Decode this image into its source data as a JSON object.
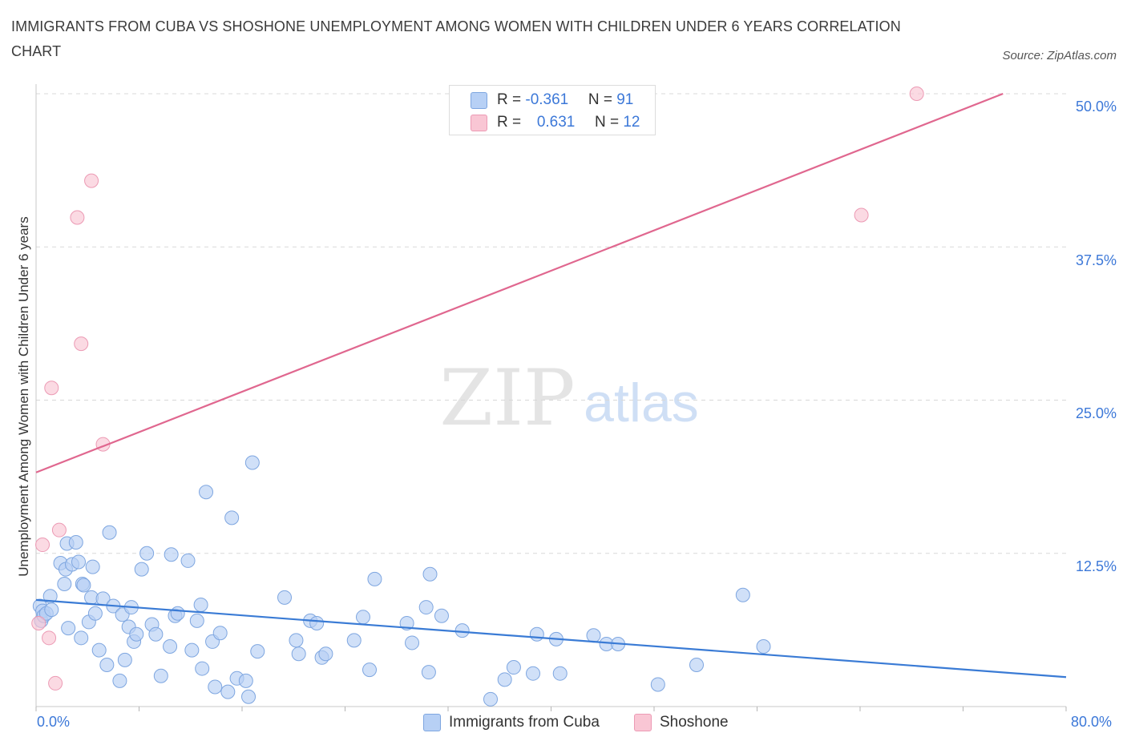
{
  "title": "IMMIGRANTS FROM CUBA VS SHOSHONE UNEMPLOYMENT AMONG WOMEN WITH CHILDREN UNDER 6 YEARS CORRELATION CHART",
  "source": "Source: ZipAtlas.com",
  "watermark": {
    "zip": "ZIP",
    "atlas": "atlas"
  },
  "legend": {
    "cuba": {
      "r_label": "R = ",
      "r_value": "-0.361",
      "n_label": "N = ",
      "n_value": "91"
    },
    "shoshone": {
      "r_label": "R = ",
      "r_value": "0.631",
      "n_label": "N = ",
      "n_value": "12"
    }
  },
  "colors": {
    "cuba_fill": "#b7d0f5",
    "cuba_stroke": "#7ea6e0",
    "cuba_line": "#3a7bd5",
    "shoshone_fill": "#f9c6d4",
    "shoshone_stroke": "#ec9ab4",
    "shoshone_line": "#e0678f",
    "tick_label": "#3c78d8",
    "grid": "#d8d8d8"
  },
  "chart_data": {
    "type": "scatter",
    "title": "IMMIGRANTS FROM CUBA VS SHOSHONE UNEMPLOYMENT AMONG WOMEN WITH CHILDREN UNDER 6 YEARS CORRELATION CHART",
    "xlabel": "",
    "ylabel": "Unemployment Among Women with Children Under 6 years",
    "xlim": [
      0,
      80
    ],
    "ylim": [
      0,
      50
    ],
    "x_tick_labels": [
      "0.0%",
      "80.0%"
    ],
    "y_ticks": [
      12.5,
      25.0,
      37.5,
      50.0
    ],
    "y_tick_labels": [
      "12.5%",
      "25.0%",
      "37.5%",
      "50.0%"
    ],
    "grid": "horizontal dashed",
    "legend_placement": "top-center and bottom",
    "series": [
      {
        "name": "Immigrants from Cuba",
        "trend": [
          [
            0,
            8.7
          ],
          [
            80,
            2.4
          ]
        ],
        "points": [
          [
            0.3,
            8.2
          ],
          [
            0.4,
            7.0
          ],
          [
            0.5,
            7.8
          ],
          [
            0.6,
            7.4
          ],
          [
            0.8,
            7.6
          ],
          [
            1.1,
            9.0
          ],
          [
            1.2,
            7.9
          ],
          [
            1.9,
            11.7
          ],
          [
            2.2,
            10.0
          ],
          [
            2.3,
            11.2
          ],
          [
            2.4,
            13.3
          ],
          [
            2.5,
            6.4
          ],
          [
            2.8,
            11.6
          ],
          [
            3.1,
            13.4
          ],
          [
            3.3,
            11.8
          ],
          [
            3.5,
            5.6
          ],
          [
            3.6,
            10.0
          ],
          [
            3.7,
            9.9
          ],
          [
            4.1,
            6.9
          ],
          [
            4.3,
            8.9
          ],
          [
            4.4,
            11.4
          ],
          [
            4.6,
            7.6
          ],
          [
            4.9,
            4.6
          ],
          [
            5.2,
            8.8
          ],
          [
            5.5,
            3.4
          ],
          [
            5.7,
            14.2
          ],
          [
            6.0,
            8.2
          ],
          [
            6.5,
            2.1
          ],
          [
            6.7,
            7.5
          ],
          [
            6.9,
            3.8
          ],
          [
            7.2,
            6.5
          ],
          [
            7.4,
            8.1
          ],
          [
            7.6,
            5.3
          ],
          [
            7.8,
            5.9
          ],
          [
            8.2,
            11.2
          ],
          [
            8.6,
            12.5
          ],
          [
            9.0,
            6.7
          ],
          [
            9.3,
            5.9
          ],
          [
            9.7,
            2.5
          ],
          [
            10.4,
            4.9
          ],
          [
            10.5,
            12.4
          ],
          [
            10.8,
            7.4
          ],
          [
            11.0,
            7.6
          ],
          [
            11.8,
            11.9
          ],
          [
            12.1,
            4.6
          ],
          [
            12.5,
            7.0
          ],
          [
            12.8,
            8.3
          ],
          [
            12.9,
            3.1
          ],
          [
            13.2,
            17.5
          ],
          [
            13.7,
            5.3
          ],
          [
            13.9,
            1.6
          ],
          [
            14.3,
            6.0
          ],
          [
            14.9,
            1.2
          ],
          [
            15.2,
            15.4
          ],
          [
            15.6,
            2.3
          ],
          [
            16.3,
            2.1
          ],
          [
            16.5,
            0.8
          ],
          [
            16.8,
            19.9
          ],
          [
            17.2,
            4.5
          ],
          [
            19.3,
            8.9
          ],
          [
            20.2,
            5.4
          ],
          [
            20.4,
            4.3
          ],
          [
            21.3,
            7.0
          ],
          [
            21.8,
            6.8
          ],
          [
            22.2,
            4.0
          ],
          [
            22.5,
            4.3
          ],
          [
            24.7,
            5.4
          ],
          [
            25.4,
            7.3
          ],
          [
            25.9,
            3.0
          ],
          [
            26.3,
            10.4
          ],
          [
            28.8,
            6.8
          ],
          [
            29.2,
            5.2
          ],
          [
            30.3,
            8.1
          ],
          [
            30.5,
            2.8
          ],
          [
            30.6,
            10.8
          ],
          [
            31.5,
            7.4
          ],
          [
            33.1,
            6.2
          ],
          [
            35.3,
            0.6
          ],
          [
            36.4,
            2.2
          ],
          [
            37.1,
            3.2
          ],
          [
            38.6,
            2.7
          ],
          [
            38.9,
            5.9
          ],
          [
            40.4,
            5.5
          ],
          [
            40.7,
            2.7
          ],
          [
            43.3,
            5.8
          ],
          [
            44.3,
            5.1
          ],
          [
            45.2,
            5.1
          ],
          [
            48.3,
            1.8
          ],
          [
            51.3,
            3.4
          ],
          [
            54.9,
            9.1
          ],
          [
            56.5,
            4.9
          ]
        ]
      },
      {
        "name": "Shoshone",
        "trend": [
          [
            0,
            19.1
          ],
          [
            75.1,
            50.0
          ]
        ],
        "points": [
          [
            0.2,
            6.8
          ],
          [
            0.5,
            13.2
          ],
          [
            1.0,
            5.6
          ],
          [
            1.2,
            26.0
          ],
          [
            1.5,
            1.9
          ],
          [
            1.8,
            14.4
          ],
          [
            3.2,
            39.9
          ],
          [
            3.5,
            29.6
          ],
          [
            4.3,
            42.9
          ],
          [
            5.2,
            21.4
          ],
          [
            64.1,
            40.1
          ],
          [
            68.4,
            50.0
          ]
        ]
      }
    ]
  },
  "bottom_legend": {
    "cuba": "Immigrants from Cuba",
    "shoshone": "Shoshone"
  }
}
